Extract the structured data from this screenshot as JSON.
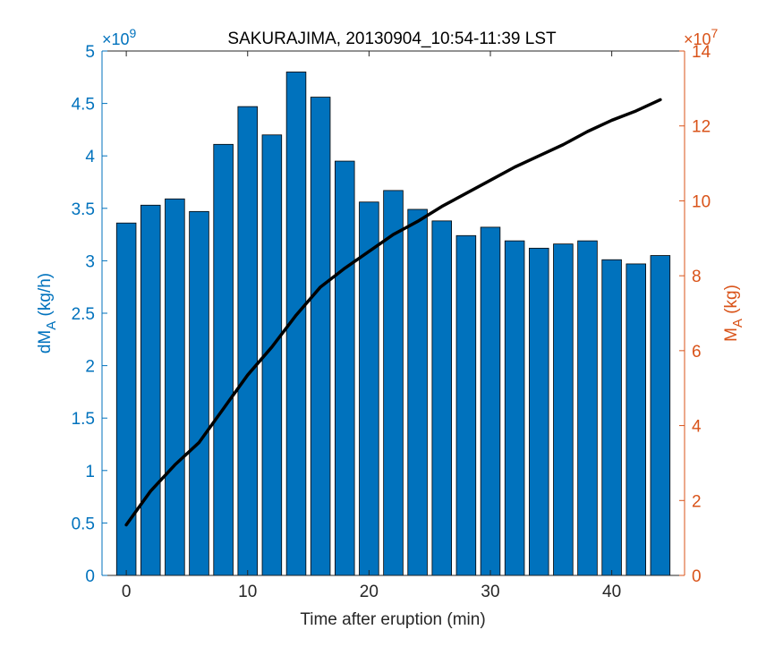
{
  "chart_data": {
    "type": "bar",
    "title": "SAKURAJIMA, 20130904_10:54-11:39 LST",
    "xlabel": "Time after eruption (min)",
    "xlim": [
      -2,
      46
    ],
    "xticks": [
      0,
      10,
      20,
      30,
      40
    ],
    "left_axis": {
      "label_main": "dM",
      "label_sub": "A",
      "label_unit": " (kg/h)",
      "ylim": [
        0,
        5
      ],
      "ticks": [
        0,
        0.5,
        1,
        1.5,
        2,
        2.5,
        3,
        3.5,
        4,
        4.5,
        5
      ],
      "tick_labels": [
        "0",
        "0.5",
        "1",
        "1.5",
        "2",
        "2.5",
        "3",
        "3.5",
        "4",
        "4.5",
        "5"
      ],
      "exponent_base": "×10",
      "exponent_power": "9",
      "color": "#0072BD"
    },
    "right_axis": {
      "label_main": "M",
      "label_sub": "A",
      "label_unit": " (kg)",
      "ylim": [
        0,
        14
      ],
      "ticks": [
        0,
        2,
        4,
        6,
        8,
        10,
        12,
        14
      ],
      "tick_labels": [
        "0",
        "2",
        "4",
        "6",
        "8",
        "10",
        "12",
        "14"
      ],
      "exponent_base": "×10",
      "exponent_power": "7",
      "color": "#D95319"
    },
    "bars": {
      "x": [
        0,
        2,
        4,
        6,
        8,
        10,
        12,
        14,
        16,
        18,
        20,
        22,
        24,
        26,
        28,
        30,
        32,
        34,
        36,
        38,
        40,
        42,
        44
      ],
      "values": [
        3.36,
        3.53,
        3.59,
        3.47,
        4.11,
        4.47,
        4.2,
        4.8,
        4.56,
        3.95,
        3.56,
        3.67,
        3.49,
        3.38,
        3.24,
        3.32,
        3.19,
        3.12,
        3.16,
        3.19,
        3.01,
        2.97,
        3.05
      ],
      "color": "#0072BD"
    },
    "line": {
      "x": [
        0,
        2,
        4,
        6,
        8,
        10,
        12,
        14,
        16,
        18,
        20,
        22,
        24,
        26,
        28,
        30,
        32,
        34,
        36,
        38,
        40,
        42,
        44
      ],
      "values": [
        1.35,
        2.25,
        2.95,
        3.55,
        4.45,
        5.35,
        6.1,
        6.95,
        7.7,
        8.2,
        8.65,
        9.1,
        9.45,
        9.85,
        10.2,
        10.55,
        10.9,
        11.2,
        11.5,
        11.85,
        12.15,
        12.4,
        12.7
      ],
      "color": "#000000"
    }
  }
}
